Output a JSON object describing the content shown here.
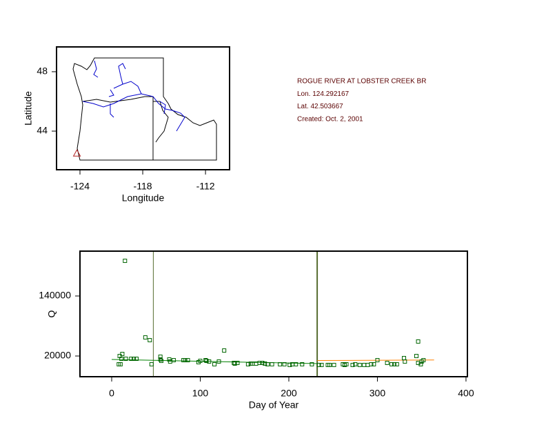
{
  "chart_data": [
    {
      "type": "map",
      "xlabel": "Longitude",
      "ylabel": "Latitude",
      "xlim": [
        -126.24,
        -109.7
      ],
      "ylim": [
        41.4,
        49.67
      ],
      "xticks": [
        -124,
        -118,
        -112
      ],
      "yticks": [
        44,
        48
      ],
      "x": [
        -124.292167
      ],
      "values": [
        42.503667
      ],
      "color": "#b22222",
      "annotations": [
        "ROGUE RIVER AT LOBSTER CREEK BR",
        "Lon. 124.292167",
        "Lat. 42.503667",
        "Created:   Oct. 2, 2001"
      ]
    },
    {
      "type": "scatter",
      "xlabel": "Day of Year",
      "ylabel": "Q",
      "xlim": [
        -35.8,
        401.6
      ],
      "ylim": [
        -21379,
        229655
      ],
      "xticks": [
        0,
        100,
        200,
        300,
        400
      ],
      "yticks": [
        20000,
        140000
      ],
      "color": "#006400",
      "x": [
        8,
        10,
        9,
        12,
        11,
        15,
        16,
        22,
        25,
        28,
        38,
        43,
        45,
        55,
        55,
        56,
        65,
        66,
        70,
        81,
        83,
        86,
        98,
        100,
        106,
        107,
        110,
        116,
        121,
        127,
        138,
        139,
        142,
        154,
        157,
        159,
        163,
        167,
        170,
        173,
        176,
        181,
        190,
        195,
        201,
        204,
        208,
        215,
        226,
        234,
        237,
        244,
        246,
        251,
        261,
        263,
        265,
        272,
        275,
        280,
        285,
        289,
        293,
        296,
        300,
        311,
        316,
        319,
        322,
        330,
        331,
        344,
        346,
        346,
        349,
        350,
        352
      ],
      "values": [
        3500,
        3500,
        20000,
        24100,
        14500,
        210300,
        14500,
        14500,
        14500,
        14500,
        57200,
        51700,
        3500,
        18600,
        13100,
        10300,
        13100,
        9000,
        11700,
        11700,
        11700,
        11700,
        7600,
        10300,
        11700,
        10300,
        9000,
        3500,
        9000,
        31000,
        6200,
        4800,
        6200,
        3500,
        4800,
        4800,
        4800,
        6200,
        6200,
        4800,
        3500,
        3500,
        3500,
        3500,
        2100,
        3500,
        3500,
        3500,
        3500,
        2100,
        2100,
        2100,
        2100,
        2100,
        3500,
        2100,
        3500,
        2100,
        3500,
        2100,
        2100,
        2100,
        3500,
        3500,
        11700,
        6200,
        3500,
        3500,
        3500,
        15900,
        9000,
        20000,
        49000,
        6200,
        3500,
        9000,
        11700
      ],
      "vlines": [
        47,
        232
      ],
      "vline_color": "#556b2f",
      "lines": [
        {
          "color": "#008000",
          "x": [
            0,
            232
          ],
          "values": [
            13100,
            4800
          ]
        },
        {
          "color": "#ff8000",
          "x": [
            232,
            364
          ],
          "values": [
            11000,
            12000
          ]
        }
      ]
    }
  ]
}
